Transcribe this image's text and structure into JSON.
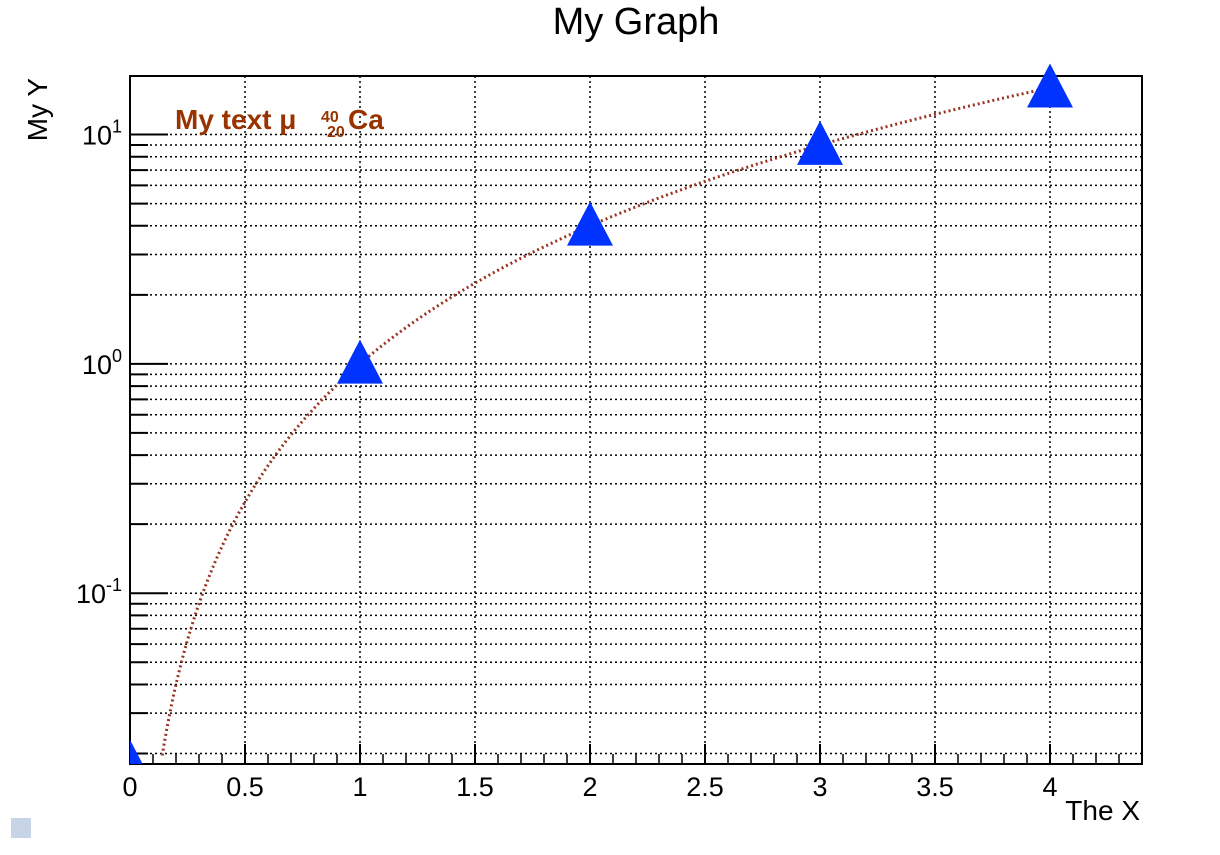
{
  "chart_data": {
    "type": "scatter",
    "title": "My Graph",
    "xlabel": "The X",
    "ylabel": "My Y",
    "yscale": "log",
    "xlim": [
      0,
      4.4
    ],
    "ylim": [
      0.018,
      18
    ],
    "grid": true,
    "x_ticks": [
      {
        "value": 0,
        "label": "0"
      },
      {
        "value": 0.5,
        "label": "0.5"
      },
      {
        "value": 1,
        "label": "1"
      },
      {
        "value": 1.5,
        "label": "1.5"
      },
      {
        "value": 2,
        "label": "2"
      },
      {
        "value": 2.5,
        "label": "2.5"
      },
      {
        "value": 3,
        "label": "3"
      },
      {
        "value": 3.5,
        "label": "3.5"
      },
      {
        "value": 4,
        "label": "4"
      }
    ],
    "y_ticks": [
      {
        "value": 0.1,
        "base": "10",
        "exp": "-1"
      },
      {
        "value": 1,
        "base": "10",
        "exp": "0"
      },
      {
        "value": 10,
        "base": "10",
        "exp": "1"
      }
    ],
    "series": [
      {
        "x": [
          0,
          1,
          2,
          3,
          4
        ],
        "y": [
          0,
          1,
          4,
          9,
          16
        ],
        "marker": "triangle-up",
        "marker_color": "#0033ff",
        "line_style": "dotted",
        "line_color": "#993322"
      }
    ],
    "annotation": {
      "text": "My text μ ",
      "superscript": "40",
      "subscript": "20",
      "element": "Ca",
      "color": "#993300"
    },
    "colors": {
      "frame": "#000000",
      "grid": "#000000",
      "status_square": "#c6d4e6"
    }
  }
}
